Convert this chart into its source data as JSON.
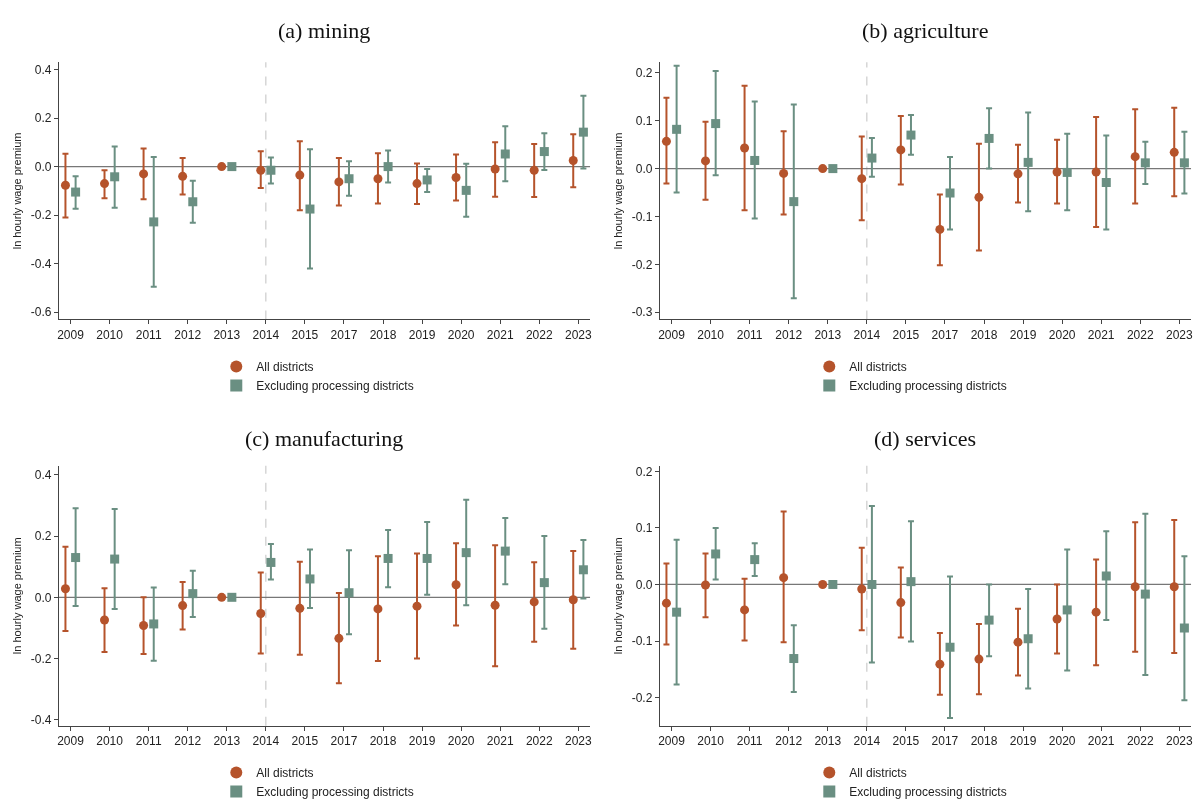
{
  "chart_data": [
    {
      "type": "scatter",
      "title": "(a) mining",
      "ylabel": "ln hourly wage premium",
      "categories": [
        "2009",
        "2010",
        "2011",
        "2012",
        "2013",
        "2014",
        "2015",
        "2017",
        "2018",
        "2019",
        "2020",
        "2021",
        "2022",
        "2023"
      ],
      "ylim": [
        -0.63,
        0.43
      ],
      "yticks": [
        {
          "value": -0.6,
          "label": "-0.6"
        },
        {
          "value": -0.4,
          "label": "-0.4"
        },
        {
          "value": -0.2,
          "label": "-0.2"
        },
        {
          "value": 0,
          "label": "0.0"
        },
        {
          "value": 0.2,
          "label": "0.2"
        },
        {
          "value": 0.4,
          "label": "0.4"
        }
      ],
      "grid": false,
      "legend": "bottom",
      "ref_lines": [
        {
          "axis": "x",
          "value": "2014",
          "line_style": "dashed",
          "color": "#cccccc"
        },
        {
          "axis": "y",
          "value": 0,
          "line_style": "solid",
          "color": "#777777"
        }
      ],
      "series": [
        {
          "name": "All districts",
          "color": "#b5532b",
          "marker": "circle",
          "values": [
            -0.077,
            -0.07,
            -0.03,
            -0.04,
            0,
            -0.015,
            -0.035,
            -0.063,
            -0.05,
            -0.07,
            -0.045,
            -0.01,
            -0.015,
            0.025
          ],
          "errors": [
            [
              -0.21,
              0.053
            ],
            [
              -0.13,
              -0.015
            ],
            [
              -0.135,
              0.075
            ],
            [
              -0.115,
              0.035
            ],
            null,
            [
              -0.088,
              0.063
            ],
            [
              -0.18,
              0.105
            ],
            [
              -0.16,
              0.035
            ],
            [
              -0.152,
              0.055
            ],
            [
              -0.154,
              0.013
            ],
            [
              -0.14,
              0.05
            ],
            [
              -0.124,
              0.1
            ],
            [
              -0.125,
              0.093
            ],
            [
              -0.085,
              0.133
            ]
          ]
        },
        {
          "name": "Excluding processing districts",
          "color": "#6a8f82",
          "marker": "square",
          "values": [
            -0.105,
            -0.042,
            -0.228,
            -0.145,
            0,
            -0.015,
            -0.175,
            -0.05,
            0,
            -0.055,
            -0.098,
            0.052,
            0.062,
            0.142
          ],
          "errors": [
            [
              -0.174,
              -0.04
            ],
            [
              -0.17,
              0.083
            ],
            [
              -0.495,
              0.04
            ],
            [
              -0.232,
              -0.058
            ],
            null,
            [
              -0.07,
              0.038
            ],
            [
              -0.42,
              0.072
            ],
            [
              -0.12,
              0.022
            ],
            [
              -0.066,
              0.066
            ],
            [
              -0.105,
              -0.01
            ],
            [
              -0.207,
              0.012
            ],
            [
              -0.06,
              0.166
            ],
            [
              -0.014,
              0.138
            ],
            [
              -0.008,
              0.292
            ]
          ]
        }
      ]
    },
    {
      "type": "scatter",
      "title": "(b) agriculture",
      "ylabel": "ln hourly wage premium",
      "categories": [
        "2009",
        "2010",
        "2011",
        "2012",
        "2013",
        "2014",
        "2015",
        "2017",
        "2018",
        "2019",
        "2020",
        "2021",
        "2022",
        "2023"
      ],
      "ylim": [
        -0.315,
        0.222
      ],
      "yticks": [
        {
          "value": -0.3,
          "label": "-0.3"
        },
        {
          "value": -0.2,
          "label": "-0.2"
        },
        {
          "value": -0.1,
          "label": "-0.1"
        },
        {
          "value": 0,
          "label": "0.0"
        },
        {
          "value": 0.1,
          "label": "0.1"
        },
        {
          "value": 0.2,
          "label": "0.2"
        }
      ],
      "grid": false,
      "legend": "bottom",
      "ref_lines": [
        {
          "axis": "x",
          "value": "2014",
          "line_style": "dashed",
          "color": "#cccccc"
        },
        {
          "axis": "y",
          "value": 0,
          "line_style": "solid",
          "color": "#777777"
        }
      ],
      "series": [
        {
          "name": "All districts",
          "color": "#b5532b",
          "marker": "circle",
          "values": [
            0.057,
            0.016,
            0.043,
            -0.01,
            0,
            -0.021,
            0.039,
            -0.127,
            -0.06,
            -0.011,
            -0.007,
            -0.007,
            0.025,
            0.034
          ],
          "errors": [
            [
              -0.031,
              0.148
            ],
            [
              -0.065,
              0.098
            ],
            [
              -0.087,
              0.173
            ],
            [
              -0.096,
              0.078
            ],
            null,
            [
              -0.108,
              0.067
            ],
            [
              -0.033,
              0.11
            ],
            [
              -0.202,
              -0.054
            ],
            [
              -0.171,
              0.052
            ],
            [
              -0.071,
              0.05
            ],
            [
              -0.073,
              0.06
            ],
            [
              -0.122,
              0.108
            ],
            [
              -0.073,
              0.124
            ],
            [
              -0.058,
              0.127
            ]
          ]
        },
        {
          "name": "Excluding processing districts",
          "color": "#6a8f82",
          "marker": "square",
          "values": [
            0.082,
            0.094,
            0.017,
            -0.069,
            0,
            0.022,
            0.07,
            -0.051,
            0.063,
            0.013,
            -0.008,
            -0.029,
            0.012,
            0.012
          ],
          "errors": [
            [
              -0.05,
              0.215
            ],
            [
              -0.014,
              0.204
            ],
            [
              -0.104,
              0.14
            ],
            [
              -0.271,
              0.134
            ],
            null,
            [
              -0.017,
              0.064
            ],
            [
              0.029,
              0.112
            ],
            [
              -0.127,
              0.024
            ],
            [
              0.0,
              0.126
            ],
            [
              -0.089,
              0.117
            ],
            [
              -0.087,
              0.073
            ],
            [
              -0.127,
              0.069
            ],
            [
              -0.032,
              0.056
            ],
            [
              -0.052,
              0.077
            ]
          ]
        }
      ]
    },
    {
      "type": "scatter",
      "title": "(c) manufacturing",
      "ylabel": "ln hourly wage premium",
      "categories": [
        "2009",
        "2010",
        "2011",
        "2012",
        "2013",
        "2014",
        "2015",
        "2017",
        "2018",
        "2019",
        "2020",
        "2021",
        "2022",
        "2023"
      ],
      "ylim": [
        -0.42,
        0.43
      ],
      "yticks": [
        {
          "value": -0.4,
          "label": "-0.4"
        },
        {
          "value": -0.2,
          "label": "-0.2"
        },
        {
          "value": 0,
          "label": "0.0"
        },
        {
          "value": 0.2,
          "label": "0.2"
        },
        {
          "value": 0.4,
          "label": "0.4"
        }
      ],
      "grid": false,
      "legend": "bottom",
      "ref_lines": [
        {
          "axis": "x",
          "value": "2014",
          "line_style": "dashed",
          "color": "#cccccc"
        },
        {
          "axis": "y",
          "value": 0,
          "line_style": "solid",
          "color": "#777777"
        }
      ],
      "series": [
        {
          "name": "All districts",
          "color": "#b5532b",
          "marker": "circle",
          "values": [
            0.028,
            -0.074,
            -0.092,
            -0.027,
            0,
            -0.053,
            -0.036,
            -0.134,
            -0.038,
            -0.029,
            0.041,
            -0.026,
            -0.015,
            -0.008
          ],
          "errors": [
            [
              -0.11,
              0.165
            ],
            [
              -0.179,
              0.03
            ],
            [
              -0.185,
              0.0
            ],
            [
              -0.105,
              0.05
            ],
            null,
            [
              -0.184,
              0.081
            ],
            [
              -0.188,
              0.116
            ],
            [
              -0.281,
              0.014
            ],
            [
              -0.208,
              0.134
            ],
            [
              -0.2,
              0.143
            ],
            [
              -0.092,
              0.177
            ],
            [
              -0.225,
              0.17
            ],
            [
              -0.145,
              0.115
            ],
            [
              -0.168,
              0.151
            ]
          ]
        },
        {
          "name": "Excluding processing districts",
          "color": "#6a8f82",
          "marker": "square",
          "values": [
            0.13,
            0.125,
            -0.087,
            0.012,
            0,
            0.114,
            0.06,
            0.015,
            0.127,
            0.127,
            0.146,
            0.151,
            0.048,
            0.09
          ],
          "errors": [
            [
              -0.028,
              0.291
            ],
            [
              -0.038,
              0.289
            ],
            [
              -0.207,
              0.032
            ],
            [
              -0.064,
              0.087
            ],
            null,
            [
              0.058,
              0.174
            ],
            [
              -0.035,
              0.156
            ],
            [
              -0.121,
              0.154
            ],
            [
              0.033,
              0.22
            ],
            [
              0.008,
              0.246
            ],
            [
              -0.026,
              0.319
            ],
            [
              0.043,
              0.259
            ],
            [
              -0.103,
              0.2
            ],
            [
              -0.004,
              0.187
            ]
          ]
        }
      ]
    },
    {
      "type": "scatter",
      "title": "(d) services",
      "ylabel": "ln hourly wage premium",
      "categories": [
        "2009",
        "2010",
        "2011",
        "2012",
        "2013",
        "2014",
        "2015",
        "2017",
        "2018",
        "2019",
        "2020",
        "2021",
        "2022",
        "2023"
      ],
      "ylim": [
        -0.25,
        0.21
      ],
      "yticks": [
        {
          "value": -0.2,
          "label": "-0.2"
        },
        {
          "value": -0.1,
          "label": "-0.1"
        },
        {
          "value": 0,
          "label": "0.0"
        },
        {
          "value": 0.1,
          "label": "0.1"
        },
        {
          "value": 0.2,
          "label": "0.2"
        }
      ],
      "grid": false,
      "legend": "bottom",
      "ref_lines": [
        {
          "axis": "x",
          "value": "2014",
          "line_style": "dashed",
          "color": "#cccccc"
        },
        {
          "axis": "y",
          "value": 0,
          "line_style": "solid",
          "color": "#777777"
        }
      ],
      "series": [
        {
          "name": "All districts",
          "color": "#b5532b",
          "marker": "circle",
          "values": [
            -0.033,
            -0.001,
            -0.045,
            0.012,
            0,
            -0.008,
            -0.032,
            -0.141,
            -0.132,
            -0.102,
            -0.061,
            -0.049,
            -0.004,
            -0.004
          ],
          "errors": [
            [
              -0.106,
              0.037
            ],
            [
              -0.058,
              0.055
            ],
            [
              -0.099,
              0.01
            ],
            [
              -0.102,
              0.129
            ],
            null,
            [
              -0.081,
              0.065
            ],
            [
              -0.094,
              0.03
            ],
            [
              -0.195,
              -0.086
            ],
            [
              -0.194,
              -0.07
            ],
            [
              -0.161,
              -0.043
            ],
            [
              -0.122,
              0.0
            ],
            [
              -0.143,
              0.044
            ],
            [
              -0.119,
              0.11
            ],
            [
              -0.121,
              0.114
            ]
          ]
        },
        {
          "name": "Excluding processing districts",
          "color": "#6a8f82",
          "marker": "square",
          "values": [
            -0.049,
            0.054,
            0.044,
            -0.131,
            0,
            0.0,
            0.005,
            -0.111,
            -0.063,
            -0.096,
            -0.045,
            0.015,
            -0.017,
            -0.077
          ],
          "errors": [
            [
              -0.177,
              0.079
            ],
            [
              0.009,
              0.1
            ],
            [
              0.015,
              0.073
            ],
            [
              -0.19,
              -0.072
            ],
            null,
            [
              -0.138,
              0.139
            ],
            [
              -0.101,
              0.112
            ],
            [
              -0.236,
              0.014
            ],
            [
              -0.127,
              0.0
            ],
            [
              -0.184,
              -0.008
            ],
            [
              -0.152,
              0.062
            ],
            [
              -0.063,
              0.094
            ],
            [
              -0.16,
              0.125
            ],
            [
              -0.205,
              0.05
            ]
          ]
        }
      ]
    }
  ]
}
